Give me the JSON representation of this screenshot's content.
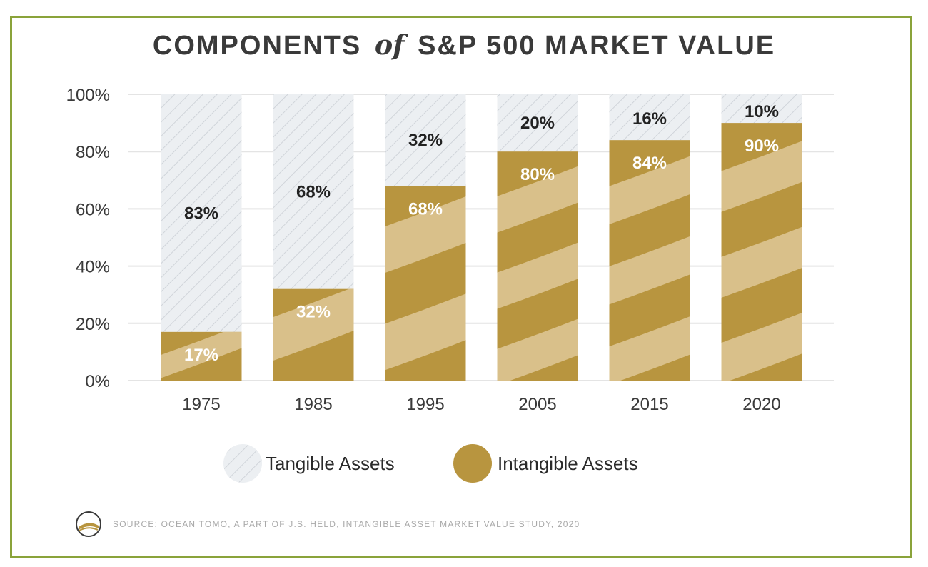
{
  "title": {
    "part1": "COMPONENTS",
    "connector": "of",
    "part2": "S&P 500 MARKET VALUE"
  },
  "chart_data": {
    "type": "bar",
    "stacked": true,
    "categories": [
      "1975",
      "1985",
      "1995",
      "2005",
      "2015",
      "2020"
    ],
    "series": [
      {
        "name": "Intangible Assets",
        "values": [
          17,
          32,
          68,
          80,
          84,
          90
        ],
        "labels": [
          "17%",
          "32%",
          "68%",
          "80%",
          "84%",
          "90%"
        ]
      },
      {
        "name": "Tangible Assets",
        "values": [
          83,
          68,
          32,
          20,
          16,
          10
        ],
        "labels": [
          "83%",
          "68%",
          "32%",
          "20%",
          "16%",
          "10%"
        ]
      }
    ],
    "ylim": [
      0,
      100
    ],
    "yticks": [
      "0%",
      "20%",
      "40%",
      "60%",
      "80%",
      "100%"
    ],
    "grid": true,
    "legend_position": "bottom",
    "colors": {
      "intangible": "#b8953f",
      "intangible_light": "#d9c08a",
      "tangible_bg": "#eceff2",
      "tangible_hatch": "#c9ced4",
      "grid": "#e4e4e4"
    }
  },
  "source": "SOURCE:  OCEAN TOMO, A PART OF J.S. HELD, INTANGIBLE ASSET MARKET VALUE STUDY, 2020"
}
